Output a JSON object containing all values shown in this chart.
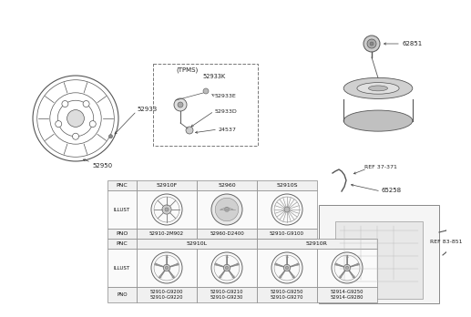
{
  "bg_color": "#ffffff",
  "row1_pnc": [
    "52910F",
    "52960",
    "52910S"
  ],
  "row1_pno": [
    "52910-2M902",
    "52960-D2400",
    "52910-G9100"
  ],
  "row2_pnc_left": "52910L",
  "row2_pnc_right": "52910R",
  "row2_pno": [
    "52910-G9200\n52910-G9220",
    "52910-G9210\n52910-G9230",
    "52910-G9250\n52910-G9270",
    "52914-G9250\n52914-G9280"
  ],
  "label_52950": "52950",
  "label_52933": "52933",
  "label_tpms": "(TPMS)",
  "label_52933k": "52933K",
  "label_52933e": "52933E",
  "label_52933d": "52933D",
  "label_24537": "24537",
  "label_62851": "62851",
  "label_ref37": "REF 37-371",
  "label_65258": "65258",
  "label_ref83": "REF 83-851"
}
